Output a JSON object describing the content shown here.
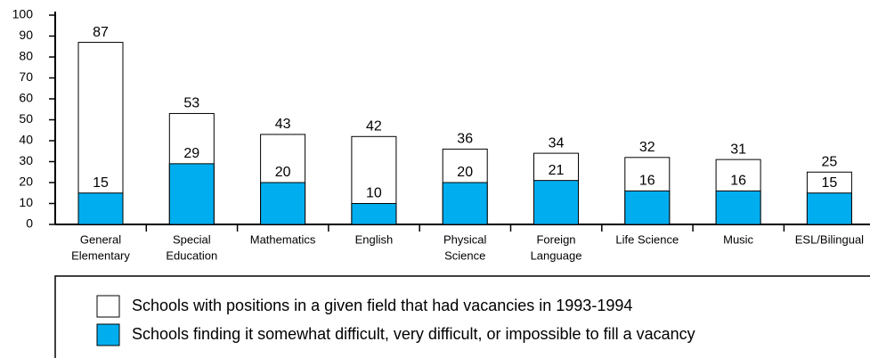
{
  "chart_data": {
    "type": "bar",
    "categories": [
      [
        "General",
        "Elementary"
      ],
      [
        "Special",
        "Education"
      ],
      [
        "Mathematics"
      ],
      [
        "English"
      ],
      [
        "Physical",
        "Science"
      ],
      [
        "Foreign",
        "Language"
      ],
      [
        "Life Science"
      ],
      [
        "Music"
      ],
      [
        "ESL/Bilingual"
      ]
    ],
    "series": [
      {
        "name": "Schools with positions in a given field that had vacancies in 1993-1994",
        "color": "#ffffff",
        "values": [
          87,
          53,
          43,
          42,
          36,
          34,
          32,
          31,
          25
        ]
      },
      {
        "name": "Schools finding it somewhat difficult, very difficult, or impossible to fill a vacancy",
        "color": "#00aeef",
        "values": [
          15,
          29,
          20,
          10,
          20,
          21,
          16,
          16,
          15
        ]
      }
    ],
    "ylim": [
      0,
      100
    ],
    "yticks": [
      0,
      10,
      20,
      30,
      40,
      50,
      60,
      70,
      80,
      90,
      100
    ]
  }
}
